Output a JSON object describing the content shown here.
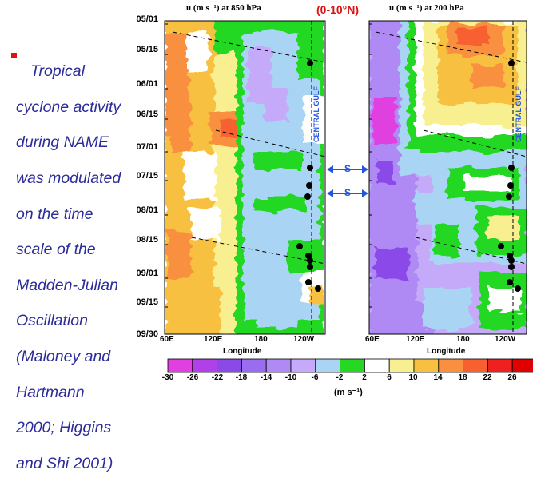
{
  "bullet": {
    "text": "Tropical cyclone activity during NAME was modulated on the time scale of the Madden-Julian Oscillation (Maloney and Hartmann 2000; Higgins and Shi 2001)",
    "lines": [
      "Tropical",
      "cyclone activity",
      "during NAME",
      "was modulated",
      "on the time",
      "scale of the",
      "Madden-Julian",
      "Oscillation",
      "(Maloney and",
      "Hartmann",
      "2000; Higgins",
      "and Shi 2001)"
    ],
    "bullet_color": "#e01010",
    "text_color": "#2b2b9a"
  },
  "left_panel": {
    "title": "u (m s⁻¹) at 850 hPa",
    "region_label": "CENTRAL GULF"
  },
  "right_panel": {
    "title": "u (m s⁻¹) at 200 hPa",
    "region_label": "CENTRAL GULF"
  },
  "region": "(0-10°N)",
  "dates": [
    "05/01",
    "05/15",
    "06/01",
    "06/15",
    "07/01",
    "07/15",
    "08/01",
    "08/15",
    "09/01",
    "09/15",
    "09/30"
  ],
  "longitudes": [
    "60E",
    "120E",
    "180",
    "120W"
  ],
  "axis_label": "Longitude",
  "arrows": [
    {
      "label": "S"
    },
    {
      "label": "S"
    }
  ],
  "colorbar": {
    "ticks": [
      "-30",
      "-26",
      "-22",
      "-18",
      "-14",
      "-10",
      "-6",
      "-2",
      "2",
      "6",
      "10",
      "14",
      "18",
      "22",
      "26"
    ],
    "colors": [
      "#e040e0",
      "#b040e8",
      "#8a4ae8",
      "#9a6cf0",
      "#b08af4",
      "#c4aaf8",
      "#aad4f4",
      "#24d824",
      "#ffffff",
      "#f8f090",
      "#f8c040",
      "#f89040",
      "#f86030",
      "#f02020",
      "#e00000"
    ],
    "units": "(m s⁻¹)"
  }
}
